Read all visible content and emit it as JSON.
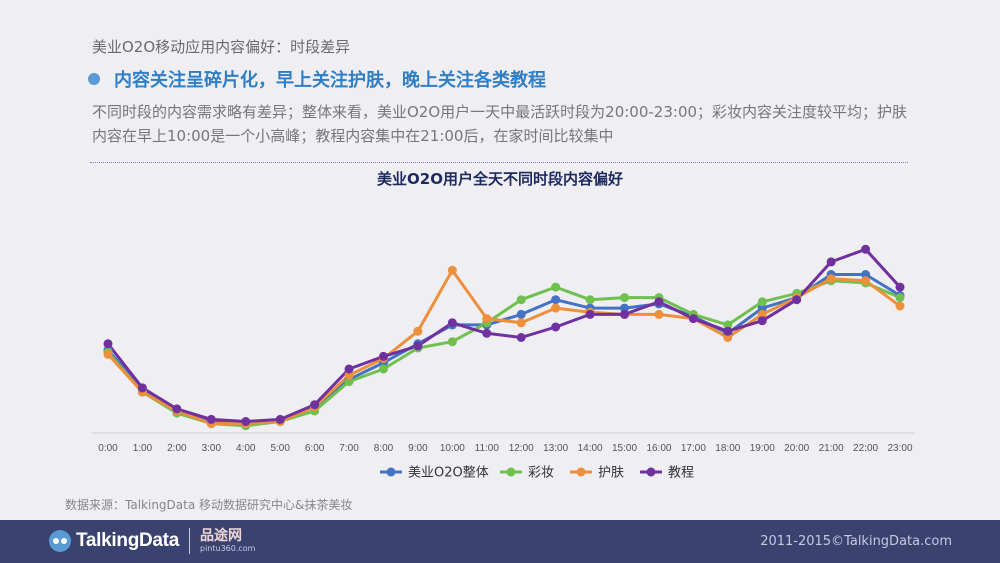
{
  "header": {
    "breadcrumb": "美业O2O移动应用内容偏好：时段差异",
    "headline": "内容关注呈碎片化，早上关注护肤，晚上关注各类教程",
    "description": "不同时段的内容需求略有差异；整体来看，美业O2O用户一天中最活跃时段为20:00-23:00；彩妆内容关注度较平均；护肤内容在早上10:00是一个小高峰；教程内容集中在21:00后，在家时间比较集中"
  },
  "chart_data": {
    "type": "line",
    "title": "美业O2O用户全天不同时段内容偏好",
    "categories": [
      "0:00",
      "1:00",
      "2:00",
      "3:00",
      "4:00",
      "5:00",
      "6:00",
      "7:00",
      "8:00",
      "9:00",
      "10:00",
      "11:00",
      "12:00",
      "13:00",
      "14:00",
      "15:00",
      "16:00",
      "17:00",
      "18:00",
      "19:00",
      "20:00",
      "21:00",
      "22:00",
      "23:00"
    ],
    "ylim": [
      0,
      100
    ],
    "grid": false,
    "legend": "bottom",
    "series": [
      {
        "name": "美业O2O整体",
        "color": "#4472c4",
        "values": [
          39,
          20,
          10,
          5,
          4,
          5,
          12,
          25,
          33,
          42,
          51,
          51,
          56,
          63,
          59,
          59,
          61,
          55,
          47,
          59,
          64,
          75,
          75,
          65
        ]
      },
      {
        "name": "彩妆",
        "color": "#70c04f",
        "values": [
          38,
          19,
          9,
          4,
          3,
          5,
          10,
          24,
          30,
          40,
          43,
          52,
          63,
          69,
          63,
          64,
          64,
          56,
          51,
          62,
          66,
          72,
          71,
          64
        ]
      },
      {
        "name": "护肤",
        "color": "#ed8f3b",
        "values": [
          37,
          19,
          10,
          4,
          4,
          5,
          12,
          27,
          35,
          48,
          77,
          54,
          52,
          59,
          57,
          56,
          56,
          54,
          45,
          56,
          64,
          73,
          72,
          60
        ]
      },
      {
        "name": "教程",
        "color": "#7030a0",
        "values": [
          42,
          21,
          11,
          6,
          5,
          6,
          13,
          30,
          36,
          41,
          52,
          47,
          45,
          50,
          56,
          56,
          62,
          54,
          48,
          53,
          63,
          81,
          87,
          69
        ]
      }
    ]
  },
  "footer": {
    "source": "数据来源：TalkingData 移动数据研究中心&抹茶美妆",
    "brand": "TalkingData",
    "partner_name": "品途网",
    "partner_url": "pintu360.com",
    "copyright": "2011-2015©TalkingData.com"
  }
}
